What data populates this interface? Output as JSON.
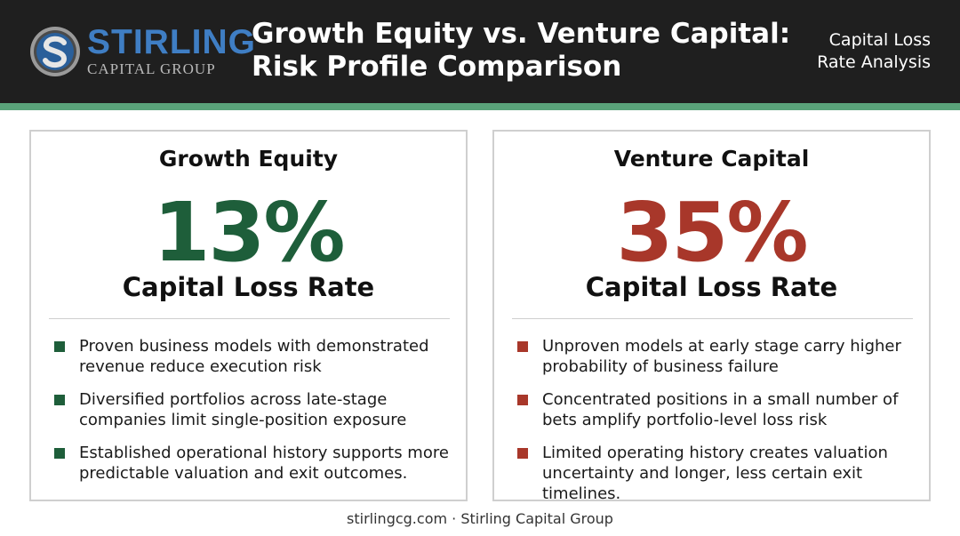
{
  "header": {
    "logo": {
      "name": "STIRLING",
      "sub": "CAPITAL GROUP"
    },
    "title_lines": [
      "Growth Equity vs. Venture Capital:",
      "Risk Profile Comparison"
    ],
    "subtitle_lines": [
      "Capital Loss",
      "Rate Analysis"
    ]
  },
  "colors": {
    "growth_accent": "#1e5e3a",
    "venture_accent": "#a8372a",
    "header_bg": "#1f1f1f",
    "stripe": "#5aa37a",
    "logo_blue": "#3f7ec4"
  },
  "cards": [
    {
      "title": "Growth Equity",
      "percent": "13%",
      "metric": "Capital Loss Rate",
      "bullets": [
        "Proven business models with demonstrated revenue reduce execution risk",
        "Diversified portfolios across late-stage companies limit single-position exposure",
        "Established operational history supports more predictable valuation and exit outcomes."
      ]
    },
    {
      "title": "Venture Capital",
      "percent": "35%",
      "metric": "Capital Loss Rate",
      "bullets": [
        "Unproven models at early stage carry higher probability of business failure",
        "Concentrated positions in a small number of bets amplify portfolio-level loss risk",
        "Limited operating history creates valuation uncertainty and longer, less certain exit timelines."
      ]
    }
  ],
  "footer": {
    "text": "stirlingcg.com · Stirling Capital Group"
  }
}
